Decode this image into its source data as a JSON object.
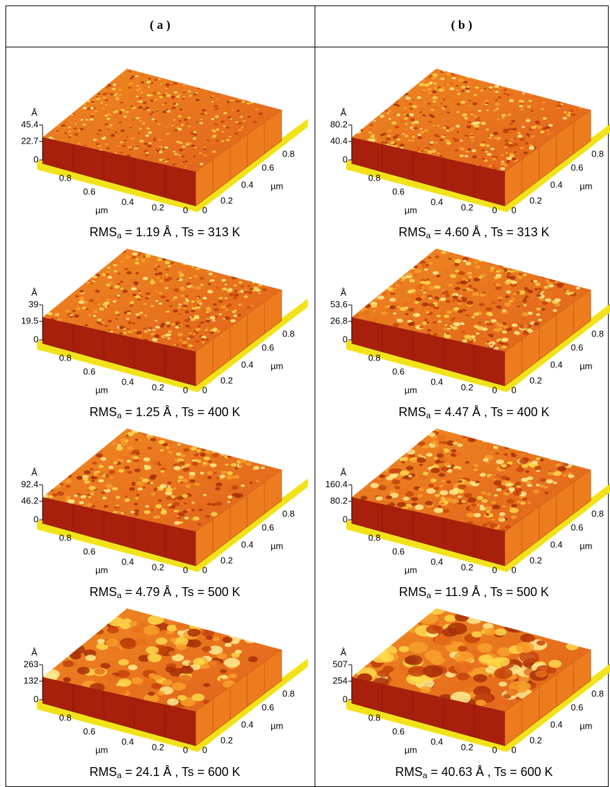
{
  "axes": {
    "xy_unit": "µm",
    "z_unit": "Å",
    "x_ticks": [
      "0.8",
      "0.6",
      "0.4",
      "0.2",
      "0"
    ],
    "y_ticks": [
      "0",
      "0.2",
      "0.4",
      "0.6",
      "0.8"
    ]
  },
  "columns": [
    {
      "header": "( a )",
      "panels": [
        {
          "z_ticks": [
            "0",
            "22.7",
            "45.4"
          ],
          "caption": {
            "main": "RMS",
            "sub": "a",
            "rest": " = 1.19 Å  ,  Ts = 313 K"
          }
        },
        {
          "z_ticks": [
            "0",
            "19.5",
            "39"
          ],
          "caption": {
            "main": "RMS",
            "sub": "a",
            "rest": " = 1.25 Å ,  Ts = 400 K"
          }
        },
        {
          "z_ticks": [
            "0",
            "46.2",
            "92.4"
          ],
          "caption": {
            "main": "RMS",
            "sub": "a",
            "rest": " = 4.79 Å ,  Ts = 500 K"
          }
        },
        {
          "z_ticks": [
            "0",
            "132",
            "263"
          ],
          "caption": {
            "main": "RMS",
            "sub": "a",
            "rest": " = 24.1 Å ,  Ts = 600 K"
          }
        }
      ]
    },
    {
      "header": "( b )",
      "panels": [
        {
          "z_ticks": [
            "0",
            "40.4",
            "80.2"
          ],
          "caption": {
            "main": "RMS",
            "sub": "a",
            "rest": " = 4.60 Å  ,  Ts = 313 K"
          }
        },
        {
          "z_ticks": [
            "0",
            "26.8",
            "53.6"
          ],
          "caption": {
            "main": "RMS",
            "sub": "a",
            "rest": " = 4.47 Å ,  Ts = 400 K"
          }
        },
        {
          "z_ticks": [
            "0",
            "80.2",
            "160.4"
          ],
          "caption": {
            "main": "RMS",
            "sub": "a",
            "rest": " = 11.9 Å ,  Ts = 500 K"
          }
        },
        {
          "z_ticks": [
            "0",
            "254",
            "507"
          ],
          "caption": {
            "main": "RMS",
            "sub": "a",
            "rest": " = 40.63 Å ,  Ts = 600 K"
          }
        }
      ]
    }
  ]
}
